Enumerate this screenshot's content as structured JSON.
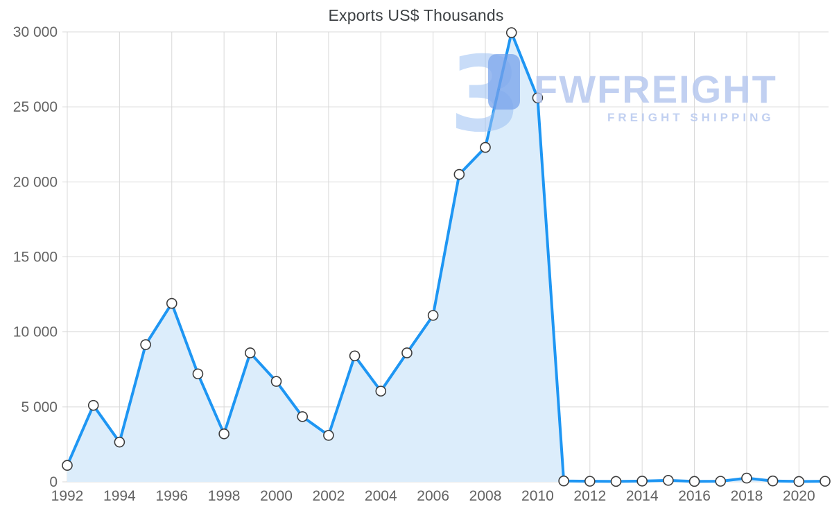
{
  "title": "Exports US$ Thousands",
  "watermark": {
    "brand": "FWFREIGHT",
    "tagline": "FREIGHT SHIPPING"
  },
  "colors": {
    "line": "#1e96f3",
    "fill": "#dcedfb",
    "marker_fill": "#ffffff",
    "marker_stroke": "#3c3c3c",
    "grid": "#d9d9d9",
    "axis_text": "#636363",
    "title_text": "#3c4043",
    "watermark_text": "#b7c8ef",
    "watermark_logo_light": "#9cc0f1",
    "watermark_logo_dark": "#6d9bea"
  },
  "chart_data": {
    "type": "area",
    "title": "Exports US$ Thousands",
    "xlabel": "",
    "ylabel": "",
    "grid": true,
    "legend": "none",
    "ylim": [
      0,
      30000
    ],
    "x": [
      1992,
      1993,
      1994,
      1995,
      1996,
      1997,
      1998,
      1999,
      2000,
      2001,
      2002,
      2003,
      2004,
      2005,
      2006,
      2007,
      2008,
      2009,
      2010,
      2011,
      2012,
      2013,
      2014,
      2015,
      2016,
      2017,
      2018,
      2019,
      2020,
      2021
    ],
    "values": [
      1100,
      5100,
      2650,
      9150,
      11900,
      7200,
      3200,
      8600,
      6700,
      4350,
      3100,
      8400,
      6050,
      8600,
      11100,
      20500,
      22300,
      29950,
      25600,
      60,
      40,
      30,
      50,
      100,
      30,
      40,
      250,
      60,
      25,
      40
    ],
    "y_ticks": [
      0,
      5000,
      10000,
      15000,
      20000,
      25000,
      30000
    ],
    "y_tick_labels": [
      "0",
      "5 000",
      "10 000",
      "15 000",
      "20 000",
      "25 000",
      "30 000"
    ],
    "x_ticks": [
      1992,
      1994,
      1996,
      1998,
      2000,
      2002,
      2004,
      2006,
      2008,
      2010,
      2012,
      2014,
      2016,
      2018,
      2020
    ],
    "x_tick_labels": [
      "1992",
      "1994",
      "1996",
      "1998",
      "2000",
      "2002",
      "2004",
      "2006",
      "2008",
      "2010",
      "2012",
      "2014",
      "2016",
      "2018",
      "2020"
    ]
  }
}
